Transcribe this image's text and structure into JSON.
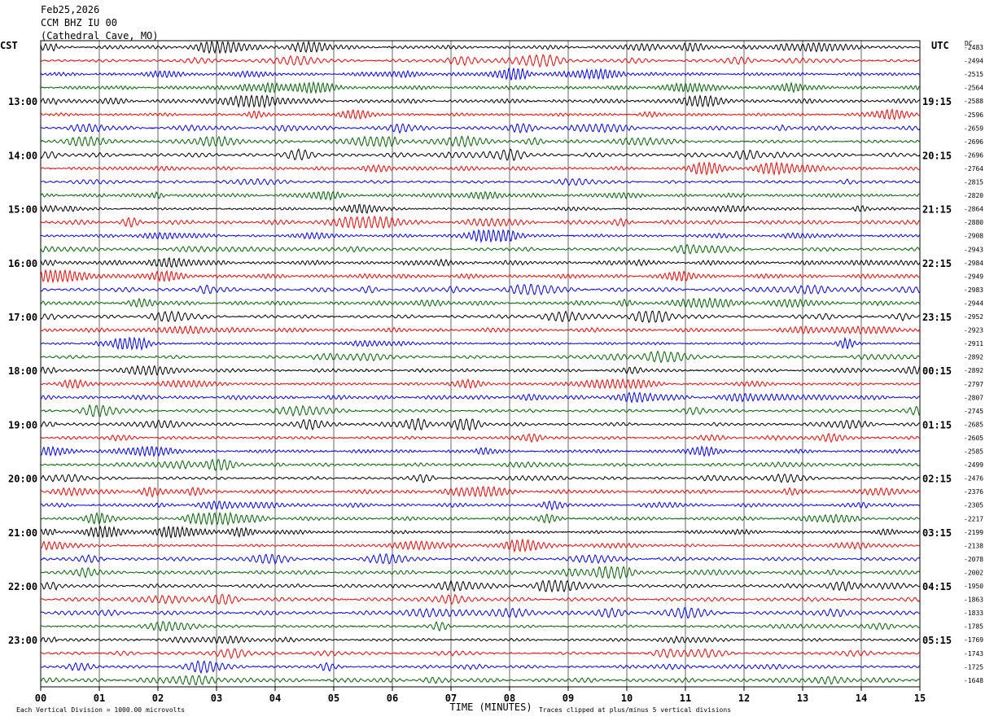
{
  "header": {
    "date": "Feb25,2026",
    "station": "CCM BHZ IU 00",
    "location": "(Cathedral Cave, MO)"
  },
  "chart_data": {
    "type": "line",
    "title": "Feb25,2026",
    "xlabel": "TIME (MINUTES)",
    "left_axis_label": "CST",
    "right_axis_label": "UTC",
    "dc_label": "DC",
    "x_ticks": [
      "00",
      "01",
      "02",
      "03",
      "04",
      "05",
      "06",
      "07",
      "08",
      "09",
      "10",
      "11",
      "12",
      "13",
      "14",
      "15"
    ],
    "xlim": [
      0,
      15
    ],
    "left_hour_labels": [
      "13:00",
      "14:00",
      "15:00",
      "16:00",
      "17:00",
      "18:00",
      "19:00",
      "20:00",
      "21:00",
      "22:00",
      "23:00"
    ],
    "right_hour_labels": [
      "19:15",
      "20:15",
      "21:15",
      "22:15",
      "23:15",
      "00:15",
      "01:15",
      "02:15",
      "03:15",
      "04:15",
      "05:15"
    ],
    "hour_label_first_row": 4,
    "rows_per_hour": 4,
    "trace_colors": [
      "#000000",
      "#ff0000",
      "#0000ff",
      "#006400"
    ],
    "dc_offsets": [
      "-2483",
      "-2494",
      "-2515",
      "-2564",
      "-2588",
      "-2596",
      "-2659",
      "-2696",
      "-2696",
      "-2764",
      "-2815",
      "-2820",
      "-2864",
      "-2880",
      "-2908",
      "-2943",
      "-2984",
      "-2949",
      "-2983",
      "-2944",
      "-2952",
      "-2923",
      "-2911",
      "-2892",
      "-2892",
      "-2797",
      "-2807",
      "-2745",
      "-2685",
      "-2605",
      "-2585",
      "-2499",
      "-2476",
      "-2376",
      "-2305",
      "-2217",
      "-2199",
      "-2138",
      "-2078",
      "-2002",
      "-1950",
      "-1863",
      "-1833",
      "-1785",
      "-1769",
      "-1743",
      "-1725",
      "-1648"
    ],
    "footer_left": "Each Vertical Division = 1000.00 microvolts",
    "footer_right": "Traces clipped at plus/minus 5 vertical divisions",
    "grid": true
  }
}
